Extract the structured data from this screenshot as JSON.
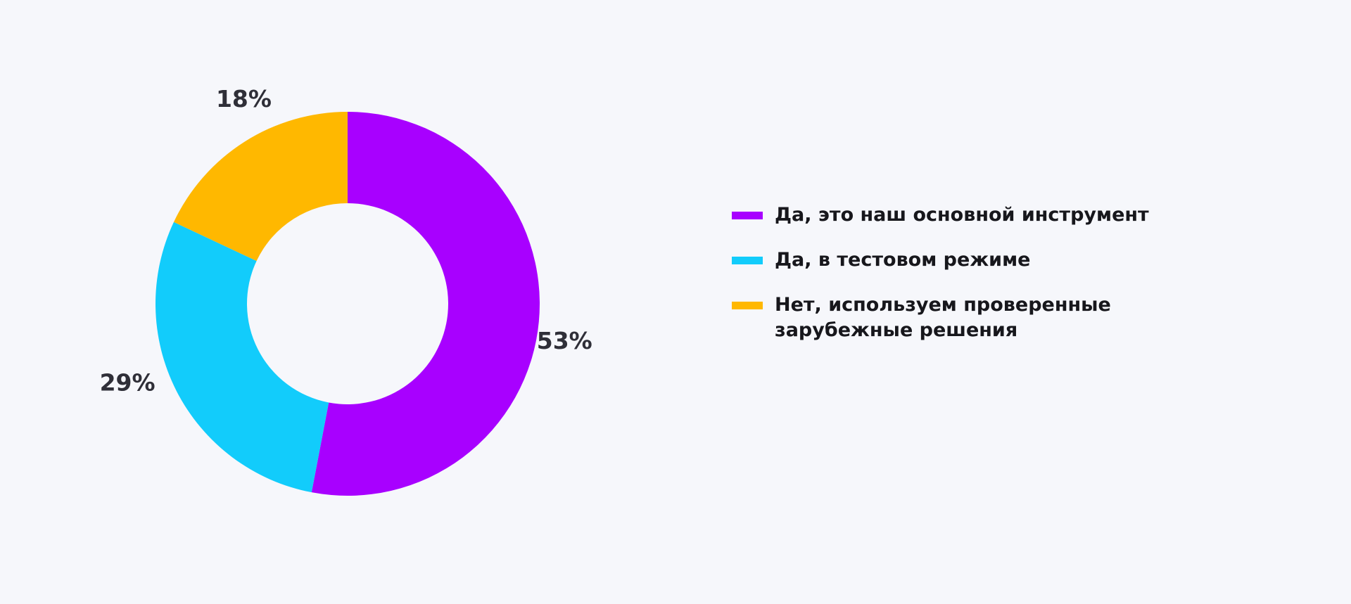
{
  "chart_data": {
    "type": "pie",
    "variant": "donut",
    "title": "",
    "series": [
      {
        "name": "",
        "values": [
          53,
          29,
          18
        ],
        "labels": [
          "53%",
          "29%",
          "18%"
        ]
      }
    ],
    "categories": [
      "Да, это наш основной инструмент",
      "Да, в тестовом режиме",
      "Нет, используем проверенные зарубежные решения"
    ],
    "colors": [
      "#a800ff",
      "#12ccfb",
      "#ffb800"
    ],
    "start_angle_deg": 0,
    "direction": "clockwise",
    "legend_position": "right"
  },
  "legend": {
    "items": [
      {
        "text": "Да, это наш основной инструмент",
        "color": "#a800ff"
      },
      {
        "text": "Да, в тестовом режиме",
        "color": "#12ccfb"
      },
      {
        "text": "Нет, используем проверенные зарубежные решения",
        "color": "#ffb800"
      }
    ]
  }
}
